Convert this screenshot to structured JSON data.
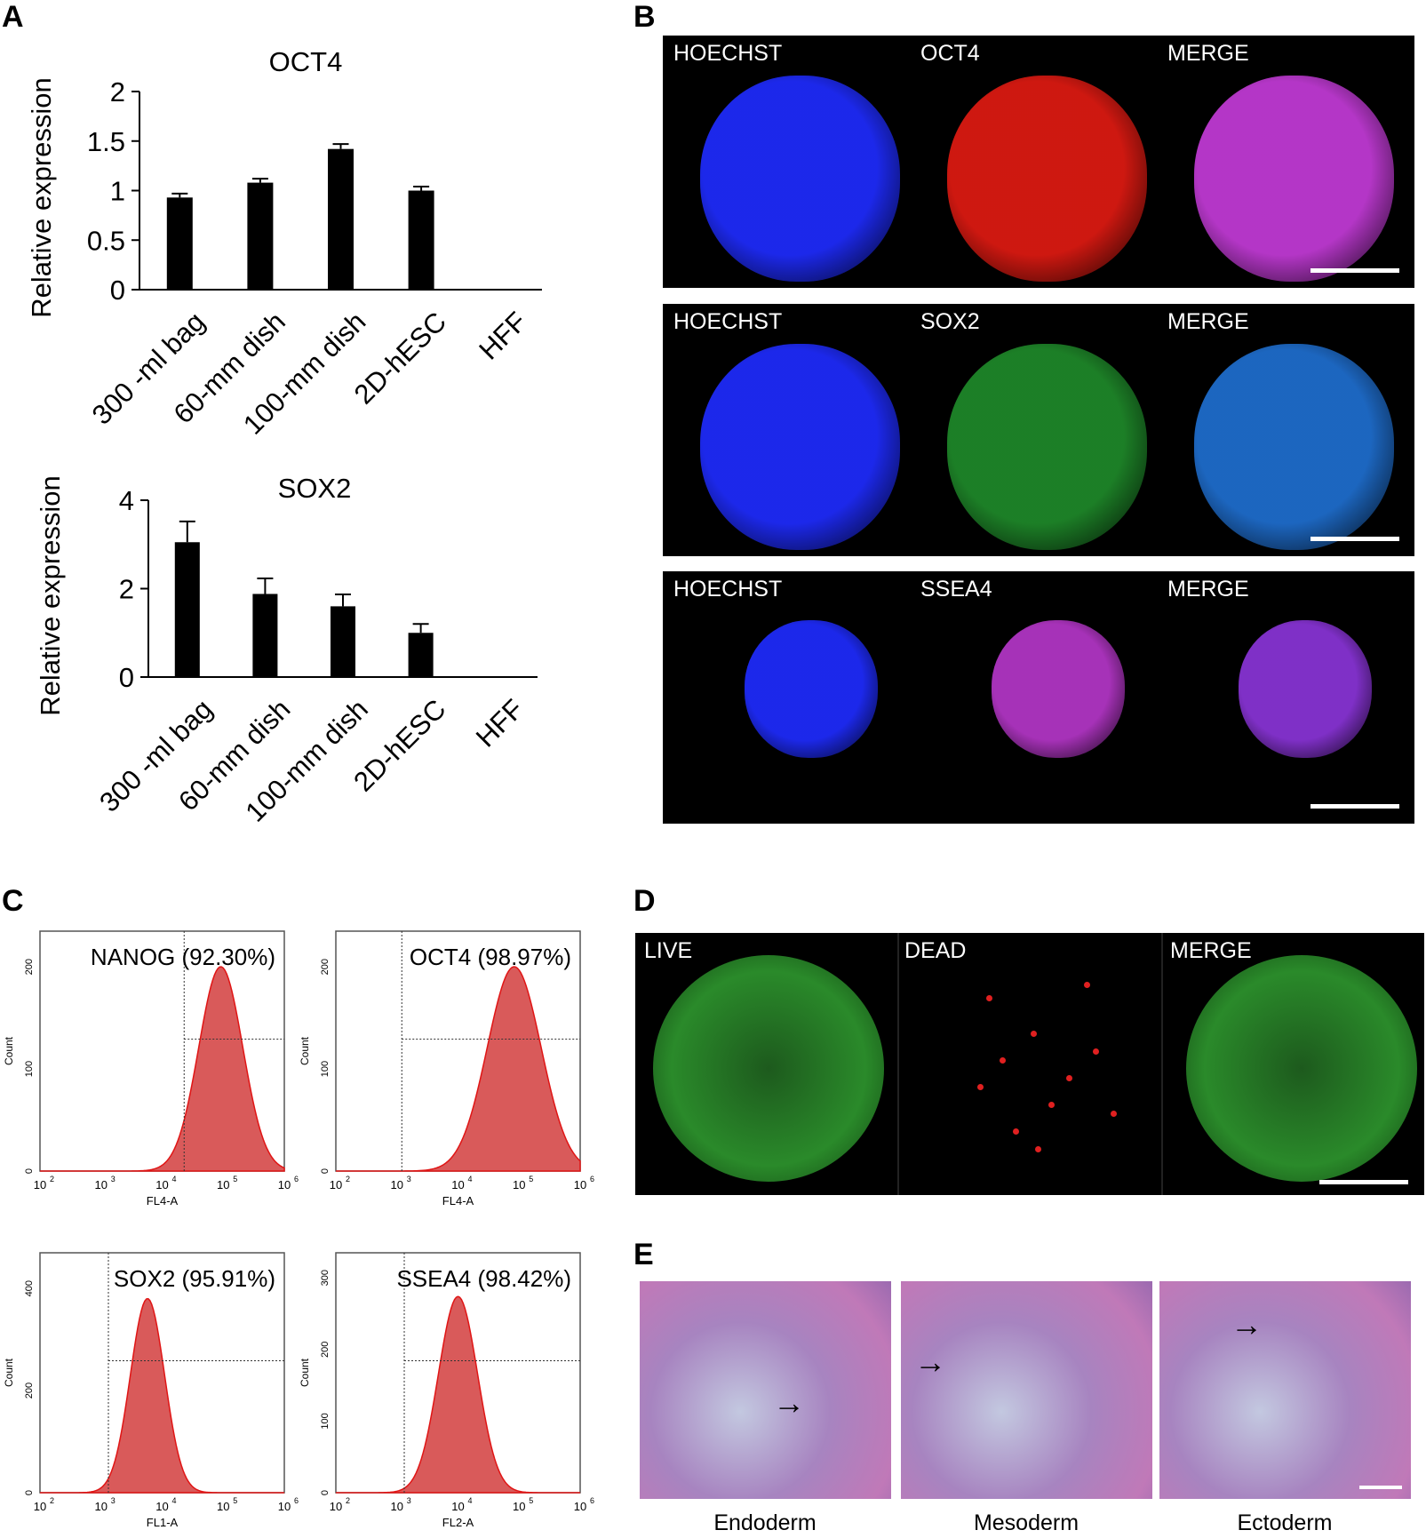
{
  "panels": {
    "A": "A",
    "B": "B",
    "C": "C",
    "D": "D",
    "E": "E"
  },
  "chart_data": [
    {
      "type": "bar",
      "title": "OCT4",
      "xlabel": "",
      "ylabel": "Relative  expression",
      "categories": [
        "300 -ml bag",
        "60-mm dish",
        "100-mm dish",
        "2D-hESC",
        "HFF"
      ],
      "values": [
        0.93,
        1.08,
        1.42,
        1.0,
        0.0
      ],
      "errors": [
        0.04,
        0.04,
        0.05,
        0.04,
        0.0
      ],
      "ylim": [
        0,
        2
      ],
      "yticks": [
        "0",
        "0.5",
        "1",
        "1.5",
        "2"
      ],
      "ytick_values": [
        0,
        0.5,
        1,
        1.5,
        2
      ],
      "grid": false
    },
    {
      "type": "bar",
      "title": "SOX2",
      "xlabel": "",
      "ylabel": "Relative expression",
      "categories": [
        "300 -ml bag",
        "60-mm dish",
        "100-mm dish",
        "2D-hESC",
        "HFF"
      ],
      "values": [
        3.05,
        1.88,
        1.6,
        1.0,
        0.0
      ],
      "errors": [
        0.47,
        0.35,
        0.27,
        0.2,
        0.0
      ],
      "ylim": [
        0,
        4
      ],
      "yticks": [
        "0",
        "2",
        "4"
      ],
      "ytick_values": [
        0,
        2,
        4
      ],
      "grid": false
    }
  ],
  "immunostaining": [
    {
      "labels": [
        "HOECHST",
        "OCT4",
        "MERGE"
      ],
      "colors": [
        "#1f2cff",
        "#e01a12",
        "#c43bd8"
      ]
    },
    {
      "labels": [
        "HOECHST",
        "SOX2",
        "MERGE"
      ],
      "colors": [
        "#1f2cff",
        "#1f8a2a",
        "#1f6fd0"
      ]
    },
    {
      "labels": [
        "HOECHST",
        "SSEA4",
        "MERGE"
      ],
      "colors": [
        "#1f2cff",
        "#b536c8",
        "#8a34d8"
      ]
    }
  ],
  "flow": [
    {
      "label": "NANOG (92.30%)",
      "xaxis": "FL4-A",
      "yaxis": "Count",
      "yticks": [
        "0",
        "100",
        "200"
      ]
    },
    {
      "label": "OCT4 (98.97%)",
      "xaxis": "FL4-A",
      "yaxis": "Count",
      "yticks": [
        "0",
        "100",
        "200"
      ]
    },
    {
      "label": "SOX2 (95.91%)",
      "xaxis": "FL1-A",
      "yaxis": "Count",
      "yticks": [
        "0",
        "200",
        "400"
      ]
    },
    {
      "label": "SSEA4 (98.42%)",
      "xaxis": "FL2-A",
      "yaxis": "Count",
      "yticks": [
        "0",
        "100",
        "200",
        "300"
      ]
    }
  ],
  "flow_xticks": [
    "10",
    "10",
    "10",
    "10",
    "10"
  ],
  "flow_xtick_exp": [
    "2",
    "3",
    "4",
    "5",
    "6"
  ],
  "live_dead": {
    "labels": [
      "LIVE",
      "DEAD",
      "MERGE"
    ]
  },
  "teratoma": {
    "captions": [
      "Endoderm",
      "Mesoderm",
      "Ectoderm"
    ]
  }
}
